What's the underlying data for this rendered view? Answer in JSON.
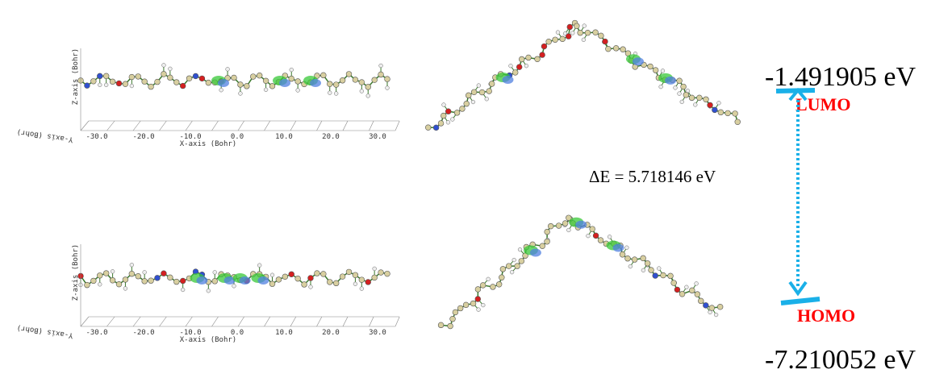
{
  "panels": [
    {
      "x_axis_label": "X-axis (Bohr)",
      "y_axis_label": "Y-axis (Bohr)",
      "z_axis_label": "Z-axis (Bohr)",
      "x_ticks": [
        "-30.0",
        "-20.0",
        "-10.0",
        "0.0",
        "10.0",
        "20.0",
        "30.0"
      ]
    },
    {
      "x_axis_label": "X-axis (Bohr)",
      "y_axis_label": "Y-axis (Bohr)",
      "z_axis_label": "Z-axis (Bohr)",
      "x_ticks": [
        "-30.0",
        "-20.0",
        "-10.0",
        "0.0",
        "10.0",
        "20.0",
        "30.0"
      ]
    }
  ],
  "energy_diagram": {
    "lumo": {
      "label": "LUMO",
      "energy": "-1.491905 eV"
    },
    "homo": {
      "label": "HOMO",
      "energy": "-7.210052 eV"
    },
    "gap": "ΔE = 5.718146 eV"
  }
}
